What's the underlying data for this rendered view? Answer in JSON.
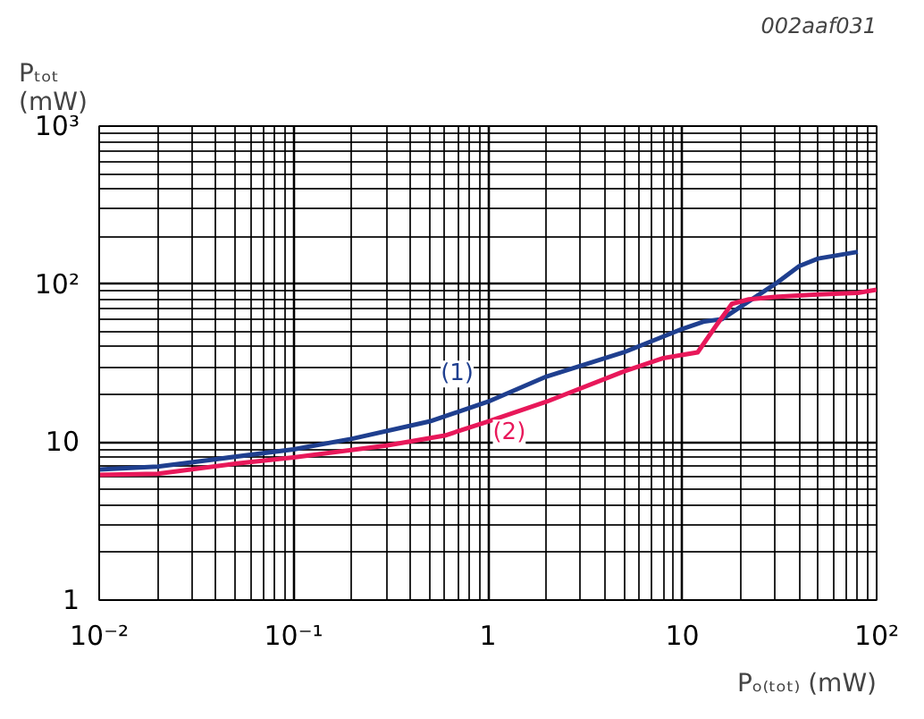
{
  "chart_data": {
    "type": "line",
    "xlabel": "Pₒ₍ₜₒₜ₎ (mW)",
    "ylabel": "Pₜₒₜ\n(mW)",
    "log": "xy",
    "grid": true,
    "xlim": [
      0.01,
      100
    ],
    "ylim": [
      1,
      1000
    ],
    "xticks": [
      {
        "value": 0.01,
        "label": "10⁻²"
      },
      {
        "value": 0.1,
        "label": "10⁻¹"
      },
      1,
      10,
      {
        "value": 100,
        "label": "10²"
      }
    ],
    "yticks": [
      1,
      10,
      {
        "value": 100,
        "label": "10²"
      },
      {
        "value": 1000,
        "label": "10³"
      }
    ],
    "annotations": [
      "002aaf031"
    ],
    "series": [
      {
        "name": "(1)",
        "color": "#1f3f8f",
        "x": [
          0.01,
          0.02,
          0.04,
          0.1,
          0.2,
          0.5,
          1,
          2,
          5,
          10,
          13,
          16,
          20,
          30,
          40,
          50,
          80
        ],
        "values": [
          6.7,
          7.0,
          7.8,
          9,
          10.5,
          13.5,
          18,
          26,
          37,
          52,
          58,
          60,
          72,
          100,
          130,
          145,
          160
        ]
      },
      {
        "name": "(2)",
        "color": "#e8185a",
        "x": [
          0.01,
          0.02,
          0.05,
          0.1,
          0.3,
          0.6,
          1,
          2,
          5,
          8,
          12,
          15,
          18,
          22,
          30,
          50,
          80,
          100
        ],
        "values": [
          6.2,
          6.3,
          7.3,
          8,
          9.5,
          11,
          13.5,
          18,
          28,
          34,
          37,
          55,
          75,
          80,
          83,
          86,
          88,
          92
        ]
      }
    ]
  }
}
